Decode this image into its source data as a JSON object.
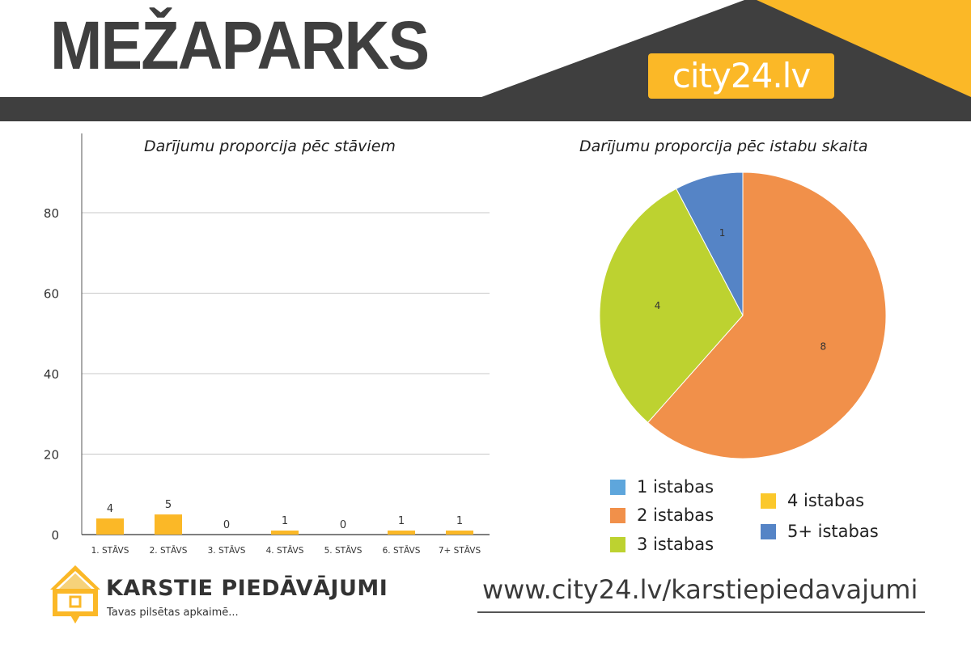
{
  "header": {
    "title": "MEŽAPARKS",
    "brand": "city24.lv",
    "colors": {
      "dark": "#3f3f3f",
      "accent": "#fbb827"
    }
  },
  "chart_data": [
    {
      "type": "bar",
      "title": "Darījumu proporcija pēc stāviem",
      "categories": [
        "1. STĀVS",
        "2. STĀVS",
        "3. STĀVS",
        "4. STĀVS",
        "5. STĀVS",
        "6. STĀVS",
        "7+ STĀVS"
      ],
      "values": [
        4,
        5,
        0,
        1,
        0,
        1,
        1
      ],
      "data_labels": [
        "4",
        "5",
        "0",
        "1",
        "0",
        "1",
        "1"
      ],
      "ylim": [
        0,
        100
      ],
      "yticks": [
        0,
        20,
        40,
        60,
        80
      ],
      "ytick_labels": [
        "0",
        "20",
        "40",
        "60",
        "80"
      ],
      "grid": true,
      "bar_color": "#fbb827",
      "xlabel": "",
      "ylabel": ""
    },
    {
      "type": "pie",
      "title": "Darījumu proporcija pēc istabu skaita",
      "categories": [
        "1 istabas",
        "2 istabas",
        "3 istabas",
        "4 istabas",
        "5+ istabas"
      ],
      "values": [
        0,
        8,
        4,
        0,
        1
      ],
      "data_labels": [
        "",
        "8",
        "4",
        "",
        "1"
      ],
      "colors": [
        "#5ea6dc",
        "#f1904a",
        "#bdd230",
        "#fbc82b",
        "#5584c6"
      ],
      "legend_labels": [
        "1  istabas",
        "2  istabas",
        "3  istabas",
        "4   istabas",
        "5+ istabas"
      ],
      "legend": "bottom"
    }
  ],
  "footer": {
    "logo_title": "KARSTIE PIEDĀVĀJUMI",
    "logo_subtitle": "Tavas pilsētas apkaimē...",
    "url": "www.city24.lv/karstiepiedavajumi"
  }
}
